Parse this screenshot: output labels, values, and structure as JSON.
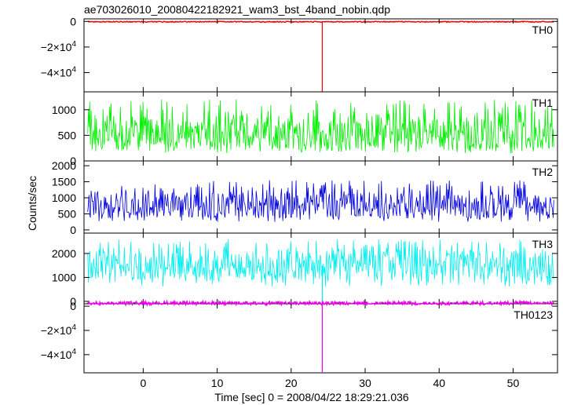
{
  "chart_data": {
    "type": "line",
    "title": "ae703026010_20080422182921_wam3_bst_4band_nobin.qdp",
    "xlabel": "Time [sec] 0 = 2008/04/22 18:29:21.036",
    "ylabel": "Counts/sec",
    "xlim": [
      -8,
      56
    ],
    "x_ticks": [
      0,
      10,
      20,
      30,
      40,
      50
    ],
    "x_tick_labels": [
      "0",
      "10",
      "20",
      "30",
      "40",
      "50"
    ],
    "spike_time": 24.2,
    "panels": [
      {
        "name": "TH0",
        "color": "#ff0000",
        "ylim": [
          -55000,
          2000
        ],
        "y_ticks": [
          0,
          -20000,
          -40000
        ],
        "y_tick_labels": [
          [
            "0",
            ""
          ],
          [
            "−2×10",
            "4"
          ],
          [
            "−4×10",
            "4"
          ]
        ],
        "baseline": -300,
        "noise_low": -700,
        "noise_high": 100,
        "spike_value": -55000
      },
      {
        "name": "TH1",
        "color": "#00ee00",
        "ylim": [
          0,
          1350
        ],
        "y_ticks": [
          0,
          500,
          1000
        ],
        "y_tick_labels": [
          [
            "0",
            ""
          ],
          [
            "500",
            ""
          ],
          [
            "1000",
            ""
          ]
        ],
        "baseline": 500,
        "noise_low": 150,
        "noise_high": 1200,
        "spike_value": null
      },
      {
        "name": "TH2",
        "color": "#0000dd",
        "ylim": [
          -100,
          2150
        ],
        "y_ticks": [
          0,
          500,
          1000,
          1500,
          2000
        ],
        "y_tick_labels": [
          [
            "0",
            ""
          ],
          [
            "500",
            ""
          ],
          [
            "1000",
            ""
          ],
          [
            "1500",
            ""
          ],
          [
            "2000",
            ""
          ]
        ],
        "baseline": 760,
        "noise_low": 250,
        "noise_high": 1550,
        "spike_value": null
      },
      {
        "name": "TH3",
        "color": "#00eeee",
        "ylim": [
          -100,
          2850
        ],
        "y_ticks": [
          0,
          1000,
          2000
        ],
        "y_tick_labels": [
          [
            "0",
            ""
          ],
          [
            "1000",
            ""
          ],
          [
            "2000",
            ""
          ]
        ],
        "baseline": 1500,
        "noise_low": 600,
        "noise_high": 2600,
        "spike_value": -100
      },
      {
        "name": "TH0123",
        "color": "#ee00ee",
        "ylim": [
          -55000,
          2000
        ],
        "y_ticks": [
          0,
          -20000,
          -40000
        ],
        "y_tick_labels": [
          [
            "0",
            ""
          ],
          [
            "−2×10",
            "4"
          ],
          [
            "−4×10",
            "4"
          ]
        ],
        "baseline": 2500,
        "noise_low": 1000,
        "noise_high": 4000,
        "spike_value": -55000
      }
    ]
  }
}
